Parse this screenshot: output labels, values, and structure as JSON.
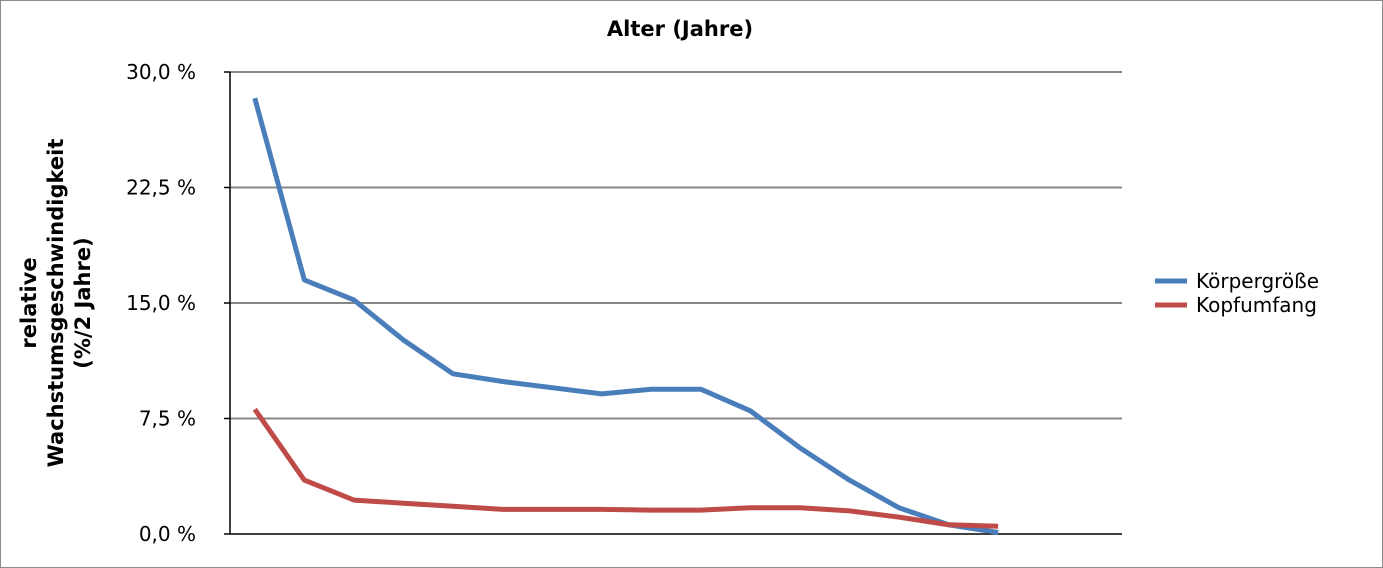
{
  "chart_data": {
    "type": "line",
    "title": "Alter (Jahre)",
    "xlabel": "",
    "ylabel_lines": [
      "relative",
      "Wachstumsgeschwindigkeit",
      "(%/2 Jahre)"
    ],
    "ylim": [
      0,
      30
    ],
    "ytick_values": [
      0,
      7.5,
      15,
      22.5,
      30
    ],
    "ytick_labels": [
      "0,0 %",
      "7,5 %",
      "15,0 %",
      "22,5 %",
      "30,0 %"
    ],
    "x": [
      1,
      2,
      3,
      4,
      5,
      6,
      7,
      8,
      9,
      10,
      11,
      12,
      13,
      14,
      15,
      16
    ],
    "xlim": [
      0.5,
      18.5
    ],
    "grid": true,
    "legend_position": "right",
    "series": [
      {
        "name": "Körpergröße",
        "color": "#4a7ebb",
        "values": [
          28.3,
          16.5,
          15.2,
          12.6,
          10.4,
          9.9,
          9.5,
          9.1,
          9.4,
          9.4,
          8.0,
          5.6,
          3.5,
          1.7,
          0.6,
          0.1
        ]
      },
      {
        "name": "Kopfumfang",
        "color": "#be4b48",
        "values": [
          8.1,
          3.5,
          2.2,
          2.0,
          1.8,
          1.6,
          1.6,
          1.6,
          1.55,
          1.55,
          1.7,
          1.7,
          1.5,
          1.1,
          0.6,
          0.5
        ]
      }
    ]
  }
}
